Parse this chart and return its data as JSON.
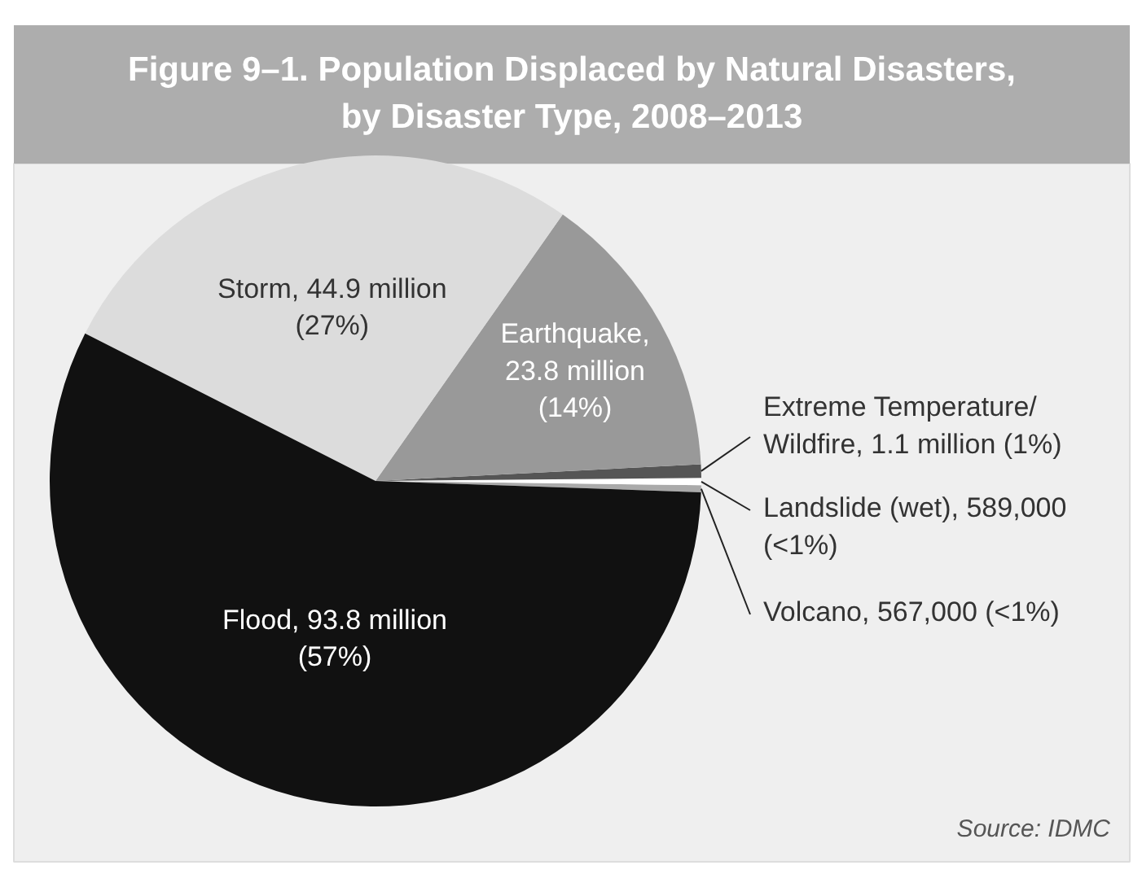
{
  "chart_data": {
    "type": "pie",
    "title": "Figure 9–1. Population Displaced by Natural Disasters, by Disaster Type, 2008–2013",
    "categories": [
      "Volcano, 567,000 (<1%)",
      "Landslide (wet), 589,000 (<1%)",
      "Extreme Temperature/ Wildfire, 1.1 million (1%)",
      "Earthquake, 23.8 million (14%)",
      "Storm, 44.9 million (27%)",
      "Flood, 93.8 million (57%)"
    ],
    "values": [
      0.567,
      0.589,
      1.1,
      23.8,
      44.9,
      93.8
    ],
    "colors": [
      "#aaaaaa",
      "#ffffff",
      "#555555",
      "#999999",
      "#dcdcdc",
      "#111111"
    ],
    "annotations": [
      "Source: IDMC"
    ]
  }
}
